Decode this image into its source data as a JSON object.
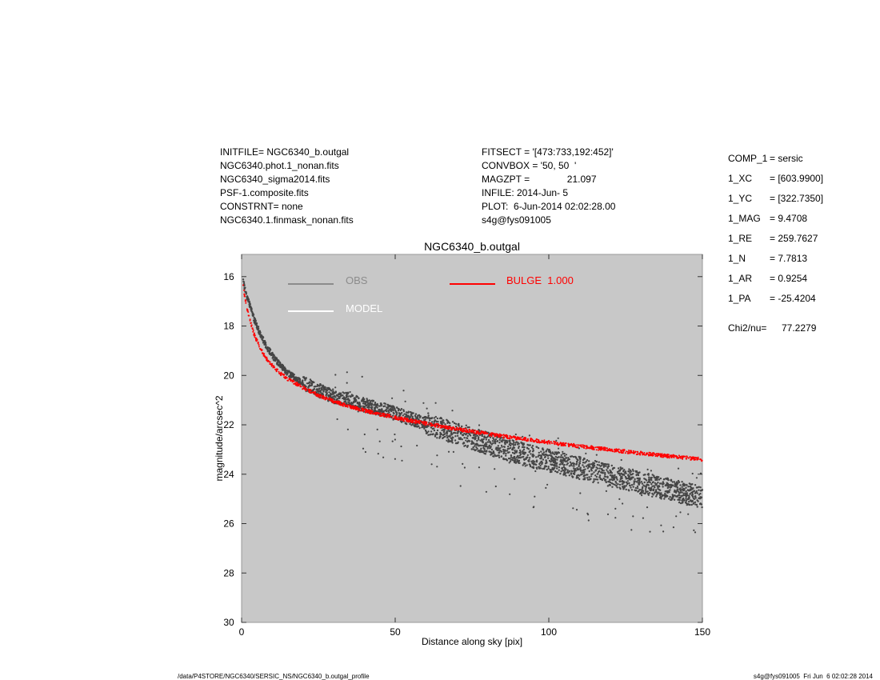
{
  "header": {
    "left": [
      "INITFILE= NGC6340_b.outgal",
      "NGC6340.phot.1_nonan.fits",
      "NGC6340_sigma2014.fits",
      "PSF-1.composite.fits",
      "CONSTRNT= none",
      "NGC6340.1.finmask_nonan.fits"
    ],
    "middle": [
      "FITSECT = '[473:733,192:452]'",
      "CONVBOX = '50, 50  '",
      "MAGZPT =              21.097",
      "INFILE: 2014-Jun- 5",
      "PLOT:  6-Jun-2014 02:02:28.00",
      "s4g@fys091005"
    ]
  },
  "params": {
    "rows": [
      {
        "label": "COMP_1",
        "value": "= sersic"
      },
      {
        "label": "1_XC",
        "value": "= [603.9900]"
      },
      {
        "label": "1_YC",
        "value": "= [322.7350]"
      },
      {
        "label": "1_MAG",
        "value": "= 9.4708"
      },
      {
        "label": "1_RE",
        "value": "= 259.7627"
      },
      {
        "label": "1_N",
        "value": "= 7.7813"
      },
      {
        "label": "1_AR",
        "value": "= 0.9254"
      },
      {
        "label": "1_PA",
        "value": "= -25.4204"
      }
    ],
    "chi_label": "Chi2/nu=",
    "chi_value": "77.2279"
  },
  "footer": {
    "left": "/data/P4STORE/NGC6340/SERSIC_NS/NGC6340_b.outgal_profile",
    "right": "s4g@fys091005  Fri Jun  6 02:02:28 2014"
  },
  "chart_data": {
    "type": "scatter",
    "title": "NGC6340_b.outgal",
    "xlabel": "Distance along sky [pix]",
    "ylabel": "magnitude/arcsec^2",
    "xlim": [
      0,
      150
    ],
    "ylim": [
      30,
      15.1
    ],
    "y_inverted": true,
    "x_ticks": [
      0,
      50,
      100,
      150
    ],
    "y_ticks": [
      16,
      18,
      20,
      22,
      24,
      26,
      28,
      30
    ],
    "background": "#c8c8c8",
    "legend": [
      {
        "label": "OBS",
        "color": "#8c8c8c"
      },
      {
        "label": "MODEL",
        "color": "#ffffff"
      },
      {
        "label": "BULGE  1.000",
        "color": "#ff0000"
      }
    ],
    "series": [
      {
        "name": "OBS",
        "color": "#454545",
        "x": [
          0.5,
          1,
          2,
          3,
          4,
          6,
          8,
          10,
          12,
          15,
          18,
          20,
          25,
          30,
          35,
          40,
          45,
          50,
          55,
          60,
          65,
          70,
          75,
          80,
          85,
          90,
          95,
          100,
          105,
          110,
          115,
          120,
          125,
          130,
          135,
          140,
          145,
          150
        ],
        "y": [
          16.1,
          16.5,
          16.9,
          17.3,
          17.7,
          18.3,
          18.8,
          19.2,
          19.5,
          19.9,
          20.15,
          20.3,
          20.6,
          20.85,
          21.0,
          21.2,
          21.35,
          21.55,
          21.75,
          21.95,
          22.15,
          22.35,
          22.55,
          22.75,
          22.95,
          23.15,
          23.3,
          23.45,
          23.6,
          23.75,
          23.9,
          24.05,
          24.2,
          24.35,
          24.5,
          24.65,
          24.8,
          24.95
        ]
      },
      {
        "name": "BULGE",
        "color": "#ff0000",
        "x": [
          0.5,
          1,
          2,
          3,
          4,
          6,
          8,
          10,
          12,
          15,
          18,
          20,
          25,
          30,
          35,
          40,
          45,
          50,
          55,
          60,
          65,
          70,
          75,
          80,
          85,
          90,
          95,
          100,
          105,
          110,
          115,
          120,
          125,
          130,
          135,
          140,
          145,
          150
        ],
        "y": [
          16.3,
          16.8,
          17.4,
          17.9,
          18.3,
          18.9,
          19.3,
          19.6,
          19.85,
          20.15,
          20.35,
          20.5,
          20.8,
          21.05,
          21.25,
          21.42,
          21.57,
          21.7,
          21.83,
          21.95,
          22.06,
          22.17,
          22.27,
          22.37,
          22.46,
          22.55,
          22.63,
          22.71,
          22.79,
          22.87,
          22.94,
          23.01,
          23.08,
          23.15,
          23.22,
          23.28,
          23.34,
          23.4
        ]
      }
    ]
  }
}
